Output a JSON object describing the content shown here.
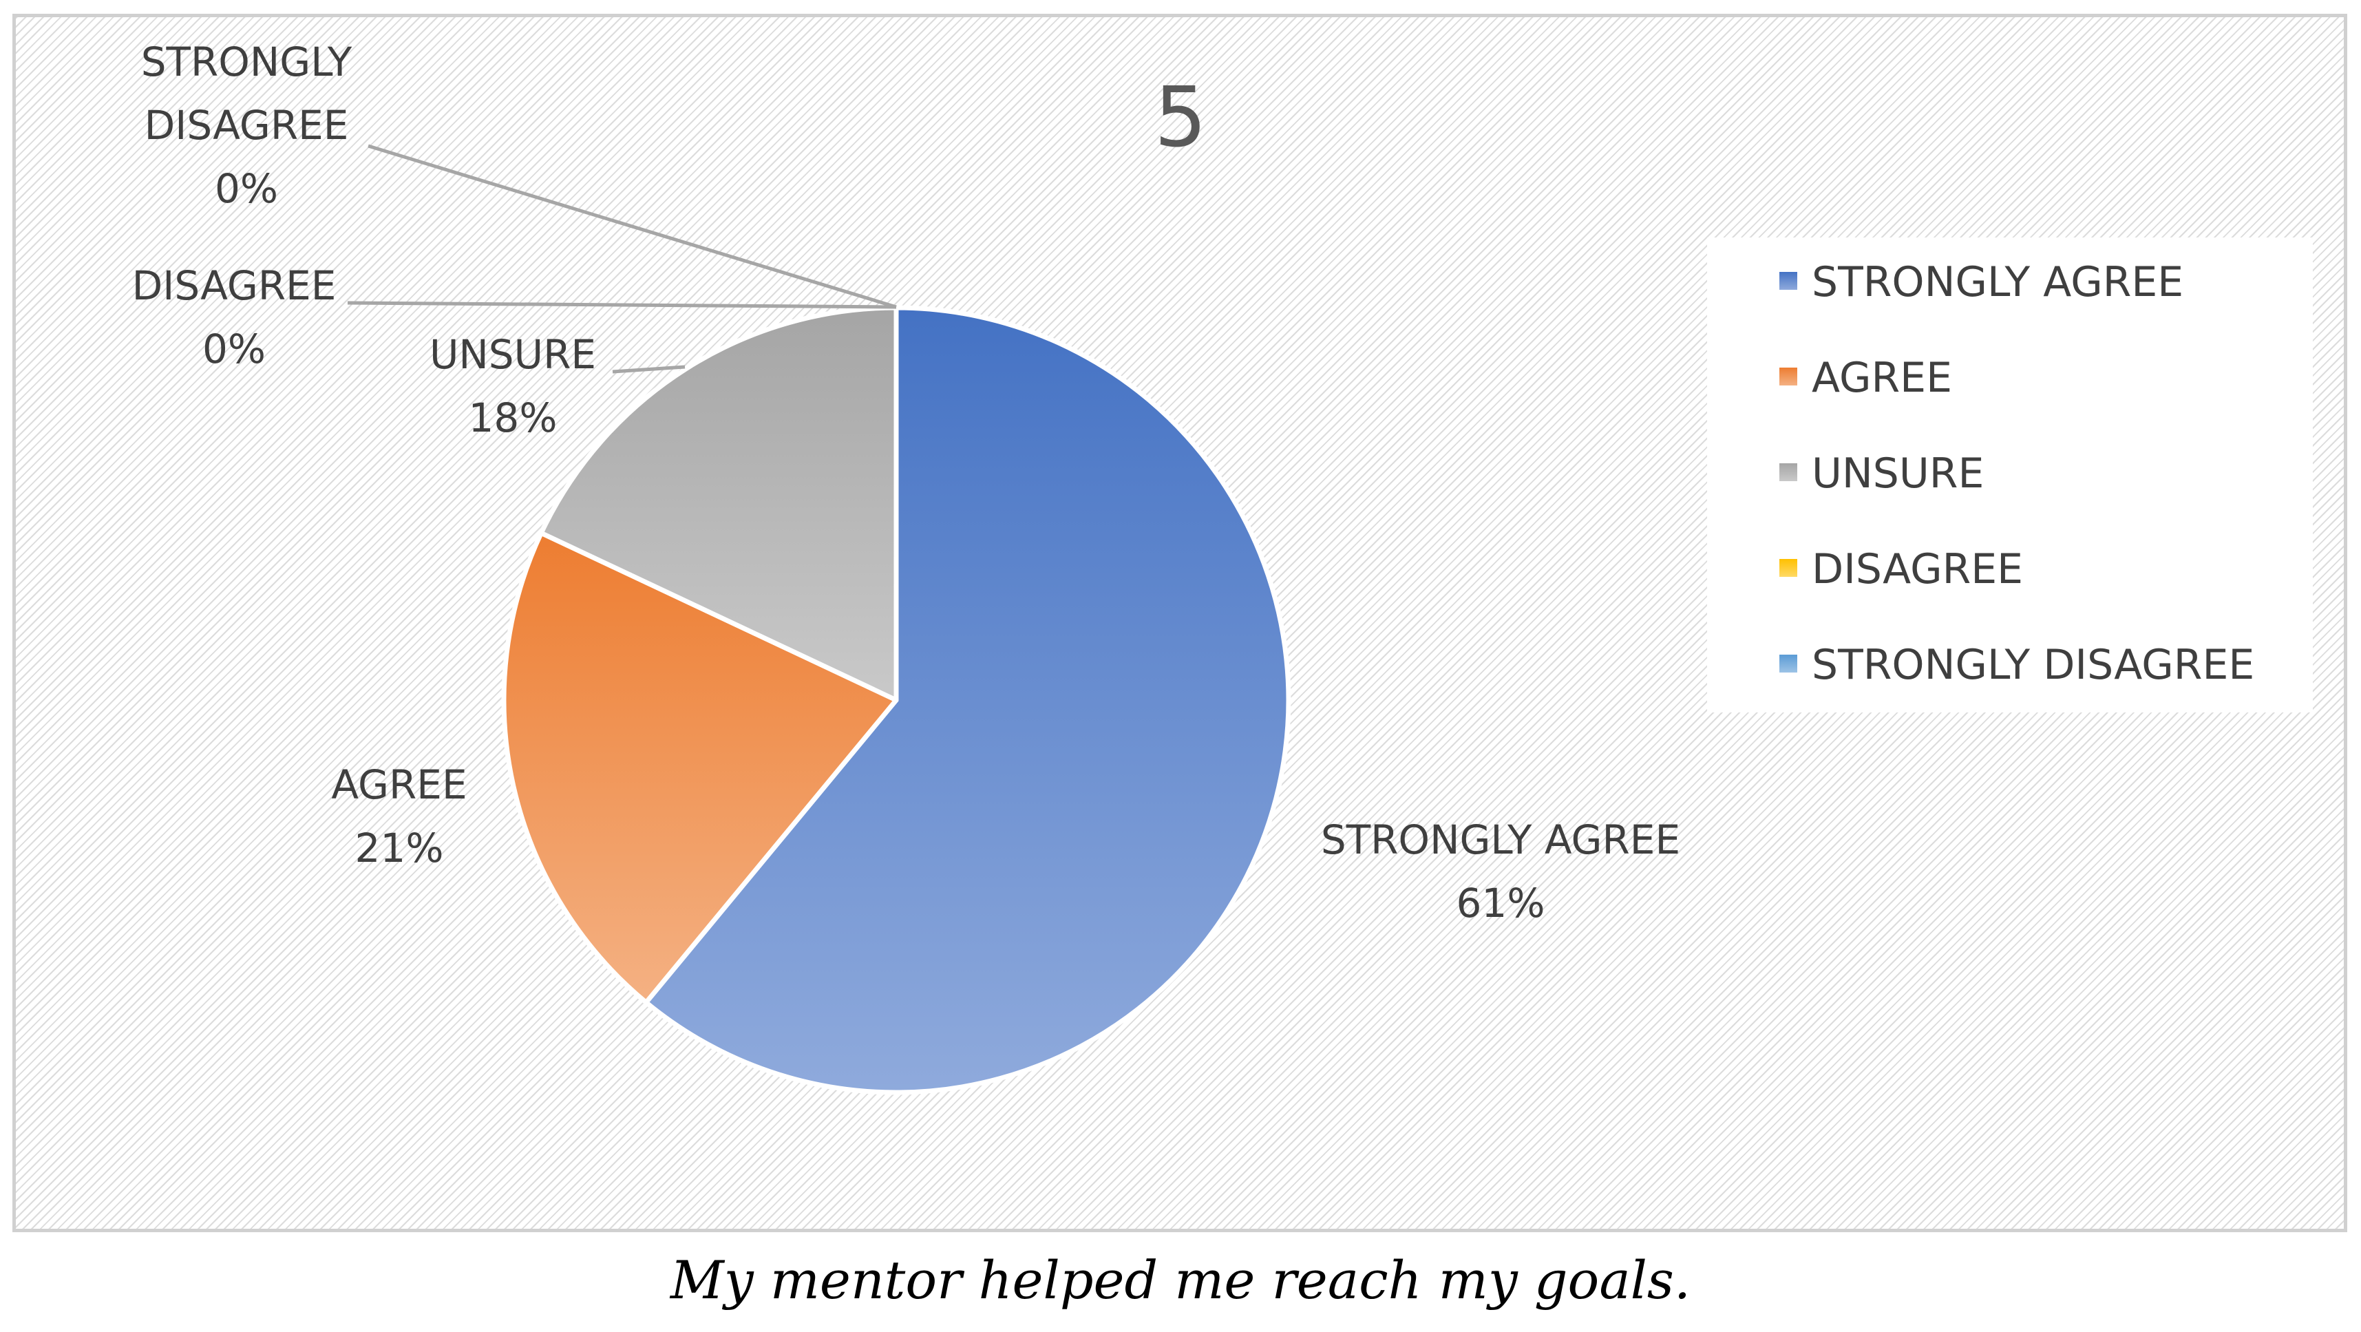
{
  "chart_data": {
    "type": "pie",
    "title": "5",
    "categories": [
      "STRONGLY AGREE",
      "AGREE",
      "UNSURE",
      "DISAGREE",
      "STRONGLY DISAGREE"
    ],
    "values": [
      61,
      21,
      18,
      0,
      0
    ],
    "value_labels": [
      "61%",
      "21%",
      "18%",
      "0%",
      "0%"
    ],
    "legend_position": "right"
  },
  "colors": {
    "strongly_agree": [
      "#4472c4",
      "#8faadc"
    ],
    "agree": [
      "#ed7d31",
      "#f4b183"
    ],
    "unsure": [
      "#a5a5a5",
      "#c9c9c9"
    ],
    "disagree": [
      "#ffc000",
      "#ffd966"
    ],
    "strongly_disagree": [
      "#5b9bd5",
      "#9dc3e6"
    ]
  },
  "caption": "My mentor helped me reach my goals."
}
